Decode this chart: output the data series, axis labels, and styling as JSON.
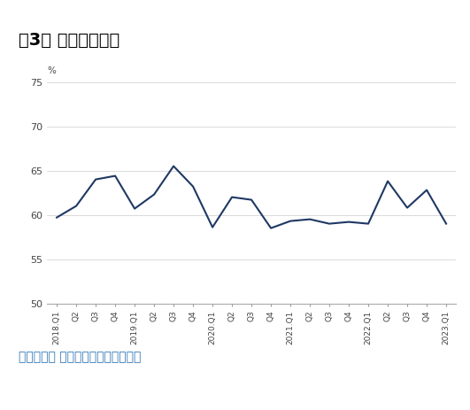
{
  "title": "图3： 物价预期指数",
  "source_text": "数据来源： 中国人民銀行调查统计司",
  "ylabel": "%",
  "ylim": [
    50,
    75
  ],
  "yticks": [
    50,
    55,
    60,
    65,
    70,
    75
  ],
  "line_color": "#1f3864",
  "line_width": 1.5,
  "background_color": "#ffffff",
  "title_color": "#000000",
  "title_fontsize": 14,
  "source_fontsize": 10,
  "source_color": "#2e75b6",
  "green_color": "#2e7d32",
  "x_labels": [
    "2018.Q1",
    "Q2",
    "Q3",
    "Q4",
    "2019.Q1",
    "Q2",
    "Q3",
    "Q4",
    "2020.Q1",
    "Q2",
    "Q3",
    "Q4",
    "2021.Q1",
    "Q2",
    "Q3",
    "Q4",
    "2022.Q1",
    "Q2",
    "Q3",
    "Q4",
    "2023.Q1"
  ],
  "values": [
    59.7,
    61.0,
    64.0,
    64.4,
    60.7,
    62.3,
    65.5,
    63.2,
    58.6,
    62.0,
    61.7,
    58.5,
    59.3,
    59.5,
    59.0,
    59.2,
    59.0,
    63.8,
    60.8,
    62.8,
    59.0
  ]
}
